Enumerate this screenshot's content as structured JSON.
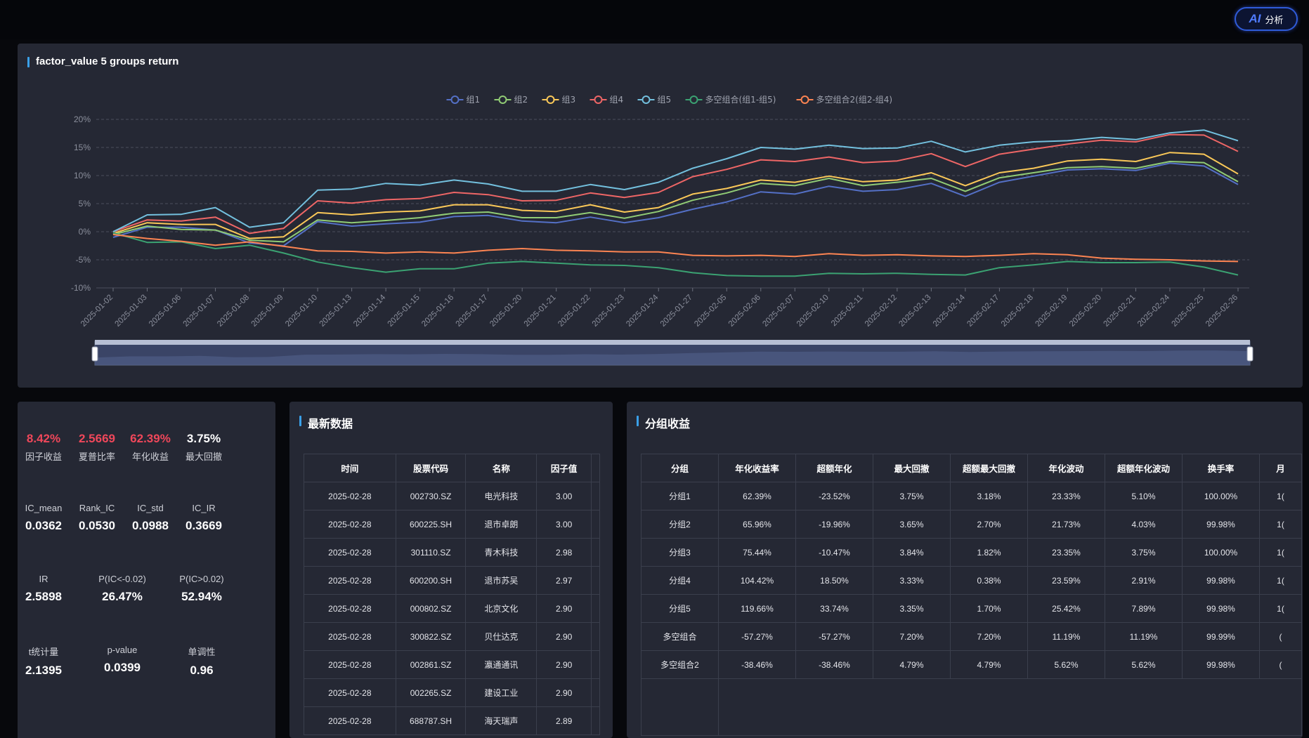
{
  "ai_button": {
    "mark": "AI",
    "label": "分析"
  },
  "chart": {
    "title": "factor_value 5 groups return",
    "legend": [
      "组1",
      "组2",
      "组3",
      "组4",
      "组5",
      "多空组合(组1-组5)",
      "多空组合2(组2-组4)"
    ]
  },
  "chart_data": {
    "type": "line",
    "x": [
      "2025-01-02",
      "2025-01-03",
      "2025-01-06",
      "2025-01-07",
      "2025-01-08",
      "2025-01-09",
      "2025-01-10",
      "2025-01-13",
      "2025-01-14",
      "2025-01-15",
      "2025-01-16",
      "2025-01-17",
      "2025-01-20",
      "2025-01-21",
      "2025-01-22",
      "2025-01-23",
      "2025-01-24",
      "2025-01-27",
      "2025-02-05",
      "2025-02-06",
      "2025-02-07",
      "2025-02-10",
      "2025-02-11",
      "2025-02-12",
      "2025-02-13",
      "2025-02-14",
      "2025-02-17",
      "2025-02-18",
      "2025-02-19",
      "2025-02-20",
      "2025-02-21",
      "2025-02-24",
      "2025-02-25",
      "2025-02-26"
    ],
    "yticks": [
      "20%",
      "15%",
      "10%",
      "5%",
      "0%",
      "-5%",
      "-10%"
    ],
    "ylim": [
      -10,
      20
    ],
    "grid": "dashed horizontal",
    "legend_position": "top",
    "series": [
      {
        "name": "组1",
        "color": "#5470c6",
        "values": [
          -1.0,
          0.8,
          0.8,
          0.3,
          -2.0,
          -2.5,
          1.8,
          1.0,
          1.4,
          1.7,
          2.7,
          2.9,
          1.9,
          1.6,
          2.6,
          1.6,
          2.5,
          4.0,
          5.3,
          7.1,
          6.7,
          8.1,
          7.2,
          7.5,
          8.6,
          6.3,
          8.8,
          9.9,
          11.0,
          11.2,
          10.9,
          12.2,
          11.7,
          8.4
        ]
      },
      {
        "name": "组2",
        "color": "#91cc75",
        "values": [
          -0.5,
          1.0,
          0.4,
          0.3,
          -1.5,
          -1.8,
          2.1,
          1.6,
          2.0,
          2.5,
          3.3,
          3.5,
          2.5,
          2.5,
          3.4,
          2.4,
          3.6,
          5.6,
          6.9,
          8.6,
          8.2,
          9.5,
          8.2,
          8.8,
          9.5,
          7.2,
          9.6,
          10.5,
          11.4,
          11.6,
          11.3,
          12.5,
          12.3,
          8.9
        ]
      },
      {
        "name": "组3",
        "color": "#fac858",
        "values": [
          -0.3,
          1.6,
          1.3,
          1.3,
          -1.2,
          -0.9,
          3.4,
          3.0,
          3.5,
          3.7,
          4.8,
          4.8,
          3.8,
          3.6,
          4.8,
          3.5,
          4.3,
          6.7,
          7.7,
          9.2,
          8.8,
          9.9,
          8.9,
          9.2,
          10.5,
          8.2,
          10.5,
          11.3,
          12.6,
          12.9,
          12.5,
          14.1,
          13.8,
          10.3
        ]
      },
      {
        "name": "组4",
        "color": "#ee6666",
        "values": [
          0.0,
          2.1,
          1.9,
          2.6,
          -0.3,
          0.6,
          5.5,
          5.1,
          5.7,
          5.9,
          7.0,
          6.6,
          5.5,
          5.6,
          6.9,
          6.1,
          7.0,
          9.8,
          11.1,
          12.8,
          12.5,
          13.3,
          12.3,
          12.6,
          13.9,
          11.6,
          13.8,
          14.7,
          15.6,
          16.3,
          16.0,
          17.3,
          17.2,
          14.3
        ]
      },
      {
        "name": "组5",
        "color": "#73c0de",
        "values": [
          0.0,
          3.0,
          3.1,
          4.3,
          0.8,
          1.6,
          7.4,
          7.6,
          8.6,
          8.3,
          9.2,
          8.5,
          7.2,
          7.2,
          8.4,
          7.5,
          8.8,
          11.3,
          13.0,
          15.0,
          14.7,
          15.4,
          14.8,
          14.9,
          16.1,
          14.2,
          15.4,
          16.0,
          16.2,
          16.8,
          16.4,
          17.6,
          18.1,
          16.2
        ]
      },
      {
        "name": "多空组合(组1-组5)",
        "color": "#3ba272",
        "values": [
          -0.2,
          -1.9,
          -1.8,
          -3.0,
          -2.4,
          -3.8,
          -5.4,
          -6.4,
          -7.2,
          -6.6,
          -6.6,
          -5.6,
          -5.3,
          -5.6,
          -5.9,
          -6.0,
          -6.4,
          -7.3,
          -7.8,
          -7.9,
          -7.9,
          -7.4,
          -7.5,
          -7.4,
          -7.6,
          -7.7,
          -6.4,
          -5.9,
          -5.3,
          -5.5,
          -5.5,
          -5.4,
          -6.3,
          -7.7
        ]
      },
      {
        "name": "多空组合2(组2-组4)",
        "color": "#fc8452",
        "values": [
          -0.5,
          -1.2,
          -1.7,
          -2.4,
          -1.8,
          -2.6,
          -3.4,
          -3.5,
          -3.8,
          -3.6,
          -3.8,
          -3.3,
          -3.0,
          -3.3,
          -3.4,
          -3.6,
          -3.6,
          -4.2,
          -4.3,
          -4.2,
          -4.4,
          -3.9,
          -4.2,
          -4.1,
          -4.3,
          -4.4,
          -4.2,
          -3.9,
          -4.1,
          -4.7,
          -4.9,
          -5.0,
          -5.2,
          -5.3
        ]
      }
    ]
  },
  "stats": [
    {
      "value": "8.42%",
      "label": "因子收益",
      "red": true
    },
    {
      "value": "2.5669",
      "label": "夏普比率",
      "red": true
    },
    {
      "value": "62.39%",
      "label": "年化收益",
      "red": true
    },
    {
      "value": "3.75%",
      "label": "最大回撤",
      "red": false
    },
    {
      "value": "0.0362",
      "label": "IC_mean"
    },
    {
      "value": "0.0530",
      "label": "Rank_IC"
    },
    {
      "value": "0.0988",
      "label": "IC_std"
    },
    {
      "value": "0.3669",
      "label": "IC_IR"
    },
    {
      "value": "2.5898",
      "label": "IR"
    },
    {
      "value": "26.47%",
      "label": "P(IC<-0.02)"
    },
    {
      "value": "52.94%",
      "label": "P(IC>0.02)"
    },
    {
      "value": "2.1395",
      "label": "t统计量"
    },
    {
      "value": "0.0399",
      "label": "p-value"
    },
    {
      "value": "0.96",
      "label": "单调性"
    }
  ],
  "latest": {
    "title": "最新数据",
    "headers": [
      "时间",
      "股票代码",
      "名称",
      "因子值"
    ],
    "rows": [
      [
        "2025-02-28",
        "002730.SZ",
        "电光科技",
        "3.00"
      ],
      [
        "2025-02-28",
        "600225.SH",
        "退市卓朗",
        "3.00"
      ],
      [
        "2025-02-28",
        "301110.SZ",
        "青木科技",
        "2.98"
      ],
      [
        "2025-02-28",
        "600200.SH",
        "退市苏吴",
        "2.97"
      ],
      [
        "2025-02-28",
        "000802.SZ",
        "北京文化",
        "2.90"
      ],
      [
        "2025-02-28",
        "300822.SZ",
        "贝仕达克",
        "2.90"
      ],
      [
        "2025-02-28",
        "002861.SZ",
        "瀛通通讯",
        "2.90"
      ],
      [
        "2025-02-28",
        "002265.SZ",
        "建设工业",
        "2.90"
      ],
      [
        "2025-02-28",
        "688787.SH",
        "海天瑞声",
        "2.89"
      ]
    ]
  },
  "groups": {
    "title": "分组收益",
    "headers": [
      "分组",
      "年化收益率",
      "超额年化",
      "最大回撤",
      "超额最大回撤",
      "年化波动",
      "超额年化波动",
      "换手率",
      "月"
    ],
    "rows": [
      [
        "分组1",
        "62.39%",
        "-23.52%",
        "3.75%",
        "3.18%",
        "23.33%",
        "5.10%",
        "100.00%",
        "1("
      ],
      [
        "分组2",
        "65.96%",
        "-19.96%",
        "3.65%",
        "2.70%",
        "21.73%",
        "4.03%",
        "99.98%",
        "1("
      ],
      [
        "分组3",
        "75.44%",
        "-10.47%",
        "3.84%",
        "1.82%",
        "23.35%",
        "3.75%",
        "100.00%",
        "1("
      ],
      [
        "分组4",
        "104.42%",
        "18.50%",
        "3.33%",
        "0.38%",
        "23.59%",
        "2.91%",
        "99.98%",
        "1("
      ],
      [
        "分组5",
        "119.66%",
        "33.74%",
        "3.35%",
        "1.70%",
        "25.42%",
        "7.89%",
        "99.98%",
        "1("
      ],
      [
        "多空组合",
        "-57.27%",
        "-57.27%",
        "7.20%",
        "7.20%",
        "11.19%",
        "11.19%",
        "99.99%",
        "("
      ],
      [
        "多空组合2",
        "-38.46%",
        "-38.46%",
        "4.79%",
        "4.79%",
        "5.62%",
        "5.62%",
        "99.98%",
        "("
      ]
    ]
  }
}
